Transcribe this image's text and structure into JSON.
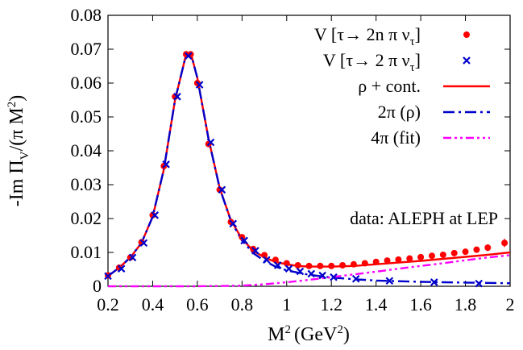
{
  "chart_data": {
    "type": "line",
    "xlabel": "M",
    "xlabel_sup": "2",
    "xlabel_unit": "(GeV",
    "xlabel_unit_sup": "2",
    "xlabel_unit_close": ")",
    "ylabel": "-Im Π",
    "ylabel_sub": "V",
    "ylabel_tail": "/(π M",
    "ylabel_sup": "2",
    "ylabel_close": ")",
    "xlim": [
      0.2,
      2.0
    ],
    "ylim": [
      0,
      0.08
    ],
    "x_ticks": [
      "0.2",
      "0.4",
      "0.6",
      "0.8",
      "1",
      "1.2",
      "1.4",
      "1.6",
      "1.8",
      "2"
    ],
    "y_ticks": [
      "0",
      "0.01",
      "0.02",
      "0.03",
      "0.04",
      "0.05",
      "0.06",
      "0.07",
      "0.08"
    ],
    "annotation": "data: ALEPH at LEP",
    "legend_position": "top-right",
    "legend": [
      {
        "label": "V [τ→ 2n π ν",
        "label_sub": "τ",
        "label_close": "]",
        "style": "points-dot",
        "color": "#ff0000"
      },
      {
        "label": "V [τ→ 2 π ν",
        "label_sub": "τ",
        "label_close": "]",
        "style": "points-x",
        "color": "#0000cc"
      },
      {
        "label": "ρ + cont.",
        "style": "solid",
        "color": "#ff0000"
      },
      {
        "label": "2π (ρ)",
        "style": "dashdot",
        "color": "#0000cc"
      },
      {
        "label": "4π (fit)",
        "style": "dashdotdot",
        "color": "#ff00ff"
      }
    ],
    "series": [
      {
        "name": "V [τ→ 2n π ντ]",
        "kind": "points",
        "marker": "dot",
        "color": "#ff0000",
        "x": [
          0.2,
          0.25,
          0.3,
          0.35,
          0.4,
          0.45,
          0.5,
          0.55,
          0.57,
          0.6,
          0.65,
          0.7,
          0.75,
          0.8,
          0.85,
          0.9,
          0.95,
          1.0,
          1.05,
          1.1,
          1.15,
          1.2,
          1.25,
          1.3,
          1.35,
          1.4,
          1.45,
          1.5,
          1.55,
          1.6,
          1.65,
          1.7,
          1.75,
          1.8,
          1.85,
          1.9,
          1.975
        ],
        "y": [
          0.0032,
          0.0055,
          0.0085,
          0.013,
          0.021,
          0.0355,
          0.056,
          0.0685,
          0.0685,
          0.06,
          0.042,
          0.0285,
          0.019,
          0.0145,
          0.011,
          0.0092,
          0.0078,
          0.0068,
          0.0062,
          0.006,
          0.006,
          0.006,
          0.0062,
          0.0065,
          0.0068,
          0.0072,
          0.0076,
          0.0079,
          0.0082,
          0.0086,
          0.009,
          0.0093,
          0.0098,
          0.0102,
          0.0108,
          0.0114,
          0.0128
        ],
        "err": [
          0.0003,
          0.0003,
          0.0003,
          0.0003,
          0.0003,
          0.0004,
          0.0004,
          0.0005,
          0.0005,
          0.0004,
          0.0004,
          0.0003,
          0.0003,
          0.0003,
          0.0003,
          0.0003,
          0.0003,
          0.0003,
          0.0003,
          0.0003,
          0.0003,
          0.0003,
          0.0004,
          0.0004,
          0.0004,
          0.0005,
          0.0005,
          0.0005,
          0.0005,
          0.0006,
          0.0006,
          0.0007,
          0.0007,
          0.0008,
          0.0009,
          0.001,
          0.0012
        ]
      },
      {
        "name": "V [τ→ 2 π ντ]",
        "kind": "points",
        "marker": "x",
        "color": "#0000cc",
        "x": [
          0.2,
          0.26,
          0.31,
          0.36,
          0.41,
          0.46,
          0.51,
          0.56,
          0.61,
          0.66,
          0.71,
          0.76,
          0.81,
          0.86,
          0.91,
          0.96,
          1.01,
          1.06,
          1.11,
          1.16,
          1.21,
          1.31,
          1.46,
          1.66,
          1.86
        ],
        "y": [
          0.003,
          0.0052,
          0.0085,
          0.0128,
          0.021,
          0.036,
          0.056,
          0.068,
          0.0595,
          0.0425,
          0.0285,
          0.0185,
          0.0135,
          0.0105,
          0.0078,
          0.0062,
          0.0052,
          0.0044,
          0.0037,
          0.0032,
          0.0027,
          0.0022,
          0.0016,
          0.0012,
          0.0008
        ]
      },
      {
        "name": "ρ + cont.",
        "kind": "line",
        "style": "solid",
        "color": "#ff0000",
        "x": [
          0.2,
          0.25,
          0.3,
          0.35,
          0.4,
          0.45,
          0.5,
          0.55,
          0.57,
          0.6,
          0.65,
          0.7,
          0.75,
          0.8,
          0.85,
          0.9,
          0.95,
          1.0,
          1.05,
          1.1,
          1.2,
          1.3,
          1.4,
          1.5,
          1.6,
          1.7,
          1.8,
          1.9,
          2.0
        ],
        "y": [
          0.003,
          0.0055,
          0.0085,
          0.0128,
          0.0205,
          0.0345,
          0.055,
          0.0685,
          0.069,
          0.0615,
          0.0435,
          0.029,
          0.0195,
          0.014,
          0.0105,
          0.0085,
          0.0072,
          0.0065,
          0.006,
          0.0058,
          0.0058,
          0.006,
          0.0065,
          0.007,
          0.0075,
          0.0081,
          0.0087,
          0.0093,
          0.01
        ]
      },
      {
        "name": "2π (ρ)",
        "kind": "line",
        "style": "dashdot",
        "color": "#0000cc",
        "x": [
          0.2,
          0.25,
          0.3,
          0.35,
          0.4,
          0.45,
          0.5,
          0.55,
          0.57,
          0.6,
          0.65,
          0.7,
          0.75,
          0.8,
          0.85,
          0.9,
          0.95,
          1.0,
          1.1,
          1.2,
          1.3,
          1.4,
          1.5,
          1.6,
          1.7,
          1.8,
          1.9,
          2.0
        ],
        "y": [
          0.003,
          0.0055,
          0.0085,
          0.0128,
          0.0205,
          0.0345,
          0.055,
          0.0685,
          0.069,
          0.0615,
          0.0435,
          0.029,
          0.0193,
          0.0135,
          0.0098,
          0.0075,
          0.0058,
          0.0047,
          0.0034,
          0.0026,
          0.0021,
          0.0017,
          0.0015,
          0.0013,
          0.0012,
          0.0011,
          0.001,
          0.0009
        ]
      },
      {
        "name": "4π (fit)",
        "kind": "line",
        "style": "dashdotdot",
        "color": "#ff00ff",
        "x": [
          0.2,
          0.4,
          0.6,
          0.8,
          0.9,
          1.0,
          1.1,
          1.2,
          1.3,
          1.4,
          1.5,
          1.6,
          1.7,
          1.8,
          1.9,
          2.0
        ],
        "y": [
          0.0,
          0.0,
          0.0,
          0.0002,
          0.0006,
          0.0012,
          0.0019,
          0.0027,
          0.0035,
          0.0043,
          0.0052,
          0.006,
          0.0068,
          0.0077,
          0.0085,
          0.0092
        ]
      }
    ]
  }
}
